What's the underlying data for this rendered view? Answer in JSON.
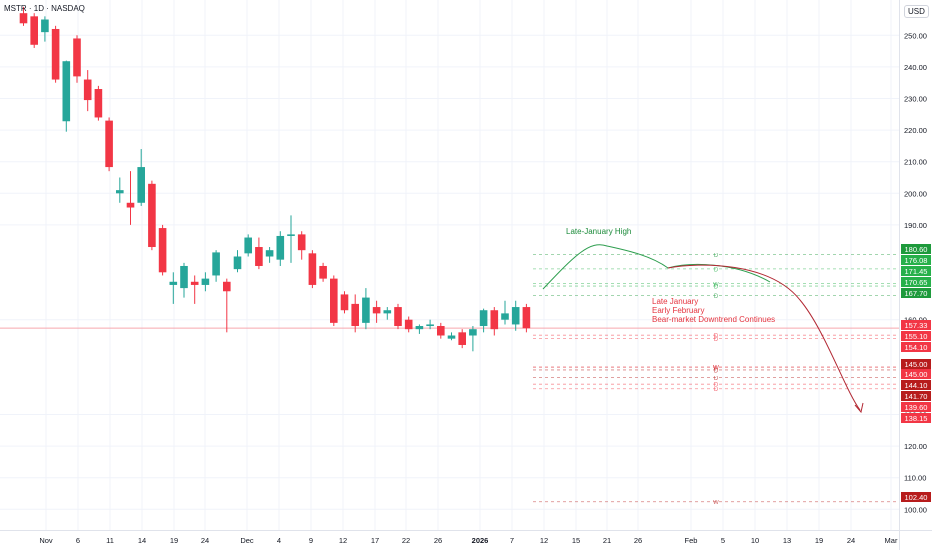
{
  "header": {
    "symbol": "MSTR · 1D · NASDAQ",
    "currency": "USD"
  },
  "colors": {
    "up": "#26a69a",
    "down": "#f23645",
    "grid": "#f0f3fa",
    "axis_text": "#131722",
    "green_text": "#1b8a3a",
    "red_text": "#e5343f",
    "projection_green": "#2e9e4f",
    "projection_red": "#b22833",
    "current_line": "#f7a6ae"
  },
  "chart_data": {
    "type": "candlestick",
    "x_tick_labels": [
      "Nov",
      "6",
      "11",
      "14",
      "19",
      "24",
      "Dec",
      "4",
      "9",
      "12",
      "17",
      "22",
      "26",
      "2026",
      "7",
      "12",
      "15",
      "21",
      "26",
      "Feb",
      "5",
      "10",
      "13",
      "19",
      "24",
      "Mar"
    ],
    "y_tick_labels": [
      "250.00",
      "240.00",
      "230.00",
      "220.00",
      "210.00",
      "200.00",
      "190.00",
      "160.00",
      "130.00",
      "120.00",
      "110.00",
      "100.00"
    ],
    "ylim": [
      97,
      254
    ],
    "candles": [
      {
        "o": 257.0,
        "h": 259.0,
        "l": 253.0,
        "c": 253.8
      },
      {
        "o": 256.0,
        "h": 257.0,
        "l": 246.0,
        "c": 247.0
      },
      {
        "o": 251.0,
        "h": 256.0,
        "l": 248.0,
        "c": 255.0
      },
      {
        "o": 252.0,
        "h": 253.0,
        "l": 235.0,
        "c": 236.0
      },
      {
        "o": 222.8,
        "h": 242.0,
        "l": 219.5,
        "c": 241.8
      },
      {
        "o": 249.0,
        "h": 250.0,
        "l": 235.0,
        "c": 237.0
      },
      {
        "o": 236.0,
        "h": 239.0,
        "l": 226.0,
        "c": 229.5
      },
      {
        "o": 233.0,
        "h": 234.0,
        "l": 223.0,
        "c": 224.0
      },
      {
        "o": 223.0,
        "h": 224.0,
        "l": 207.0,
        "c": 208.3
      },
      {
        "o": 200.0,
        "h": 205.0,
        "l": 197.0,
        "c": 201.0
      },
      {
        "o": 197.0,
        "h": 207.0,
        "l": 190.0,
        "c": 195.5
      },
      {
        "o": 197.0,
        "h": 214.0,
        "l": 196.0,
        "c": 208.3
      },
      {
        "o": 203.0,
        "h": 204.0,
        "l": 182.0,
        "c": 183.0
      },
      {
        "o": 189.0,
        "h": 190.0,
        "l": 174.0,
        "c": 175.0
      },
      {
        "o": 171.0,
        "h": 175.0,
        "l": 165.0,
        "c": 172.0
      },
      {
        "o": 170.0,
        "h": 178.0,
        "l": 167.0,
        "c": 177.0
      },
      {
        "o": 172.0,
        "h": 174.0,
        "l": 165.0,
        "c": 171.0
      },
      {
        "o": 171.0,
        "h": 175.0,
        "l": 169.0,
        "c": 173.0
      },
      {
        "o": 174.0,
        "h": 182.0,
        "l": 172.0,
        "c": 181.3
      },
      {
        "o": 172.0,
        "h": 173.0,
        "l": 156.0,
        "c": 169.0
      },
      {
        "o": 176.0,
        "h": 182.0,
        "l": 175.0,
        "c": 180.0
      },
      {
        "o": 181.0,
        "h": 187.0,
        "l": 180.0,
        "c": 186.0
      },
      {
        "o": 183.0,
        "h": 186.0,
        "l": 176.0,
        "c": 177.0
      },
      {
        "o": 180.0,
        "h": 183.0,
        "l": 178.0,
        "c": 182.0
      },
      {
        "o": 179.0,
        "h": 188.0,
        "l": 177.0,
        "c": 186.5
      },
      {
        "o": 186.5,
        "h": 193.0,
        "l": 178.0,
        "c": 187.0
      },
      {
        "o": 187.0,
        "h": 188.0,
        "l": 179.0,
        "c": 182.0
      },
      {
        "o": 181.0,
        "h": 182.0,
        "l": 170.0,
        "c": 171.0
      },
      {
        "o": 177.0,
        "h": 178.0,
        "l": 172.0,
        "c": 173.0
      },
      {
        "o": 173.0,
        "h": 174.0,
        "l": 158.0,
        "c": 159.0
      },
      {
        "o": 168.0,
        "h": 169.0,
        "l": 162.0,
        "c": 163.0
      },
      {
        "o": 165.0,
        "h": 168.0,
        "l": 156.0,
        "c": 158.0
      },
      {
        "o": 159.0,
        "h": 170.0,
        "l": 157.0,
        "c": 167.0
      },
      {
        "o": 164.0,
        "h": 166.0,
        "l": 159.0,
        "c": 162.0
      },
      {
        "o": 162.0,
        "h": 164.0,
        "l": 160.0,
        "c": 163.0
      },
      {
        "o": 164.0,
        "h": 165.0,
        "l": 157.0,
        "c": 158.0
      },
      {
        "o": 160.0,
        "h": 161.0,
        "l": 156.0,
        "c": 157.0
      },
      {
        "o": 157.0,
        "h": 158.5,
        "l": 155.5,
        "c": 158.0
      },
      {
        "o": 158.0,
        "h": 160.0,
        "l": 157.0,
        "c": 158.5
      },
      {
        "o": 158.0,
        "h": 159.0,
        "l": 154.0,
        "c": 155.0
      },
      {
        "o": 154.0,
        "h": 156.0,
        "l": 153.5,
        "c": 155.0
      },
      {
        "o": 156.0,
        "h": 157.0,
        "l": 151.0,
        "c": 152.0
      },
      {
        "o": 155.0,
        "h": 158.0,
        "l": 150.0,
        "c": 157.0
      },
      {
        "o": 158.0,
        "h": 163.5,
        "l": 156.0,
        "c": 163.0
      },
      {
        "o": 163.0,
        "h": 164.0,
        "l": 155.0,
        "c": 157.0
      },
      {
        "o": 160.0,
        "h": 166.0,
        "l": 158.5,
        "c": 162.0
      },
      {
        "o": 158.5,
        "h": 166.0,
        "l": 156.5,
        "c": 164.0
      },
      {
        "o": 164.0,
        "h": 165.0,
        "l": 156.0,
        "c": 157.3
      }
    ],
    "current_price": 157.33,
    "levels": [
      {
        "value": 180.6,
        "label": "180.60",
        "color": "#1e9a3c",
        "tag": "D"
      },
      {
        "value": 176.08,
        "label": "176.08",
        "color": "#26b04a",
        "tag": "D"
      },
      {
        "value": 171.45,
        "label": "171.45",
        "color": "#26b04a",
        "tag": "W"
      },
      {
        "value": 170.65,
        "label": "170.65",
        "color": "#26b04a",
        "tag": "D"
      },
      {
        "value": 167.7,
        "label": "167.70",
        "color": "#1e9a3c",
        "tag": "D"
      },
      {
        "value": 155.1,
        "label": "155.10",
        "color": "#f23645",
        "tag": "D"
      },
      {
        "value": 154.1,
        "label": "154.10",
        "color": "#f23645",
        "tag": "D"
      },
      {
        "value": 145.0,
        "label": "145.00",
        "color": "#b71c1c",
        "tag": "W"
      },
      {
        "value": 145.0,
        "label": "145.00",
        "color": "#f23645",
        "tag": "W"
      },
      {
        "value": 144.1,
        "label": "144.10",
        "color": "#b71c1c",
        "tag": "D"
      },
      {
        "value": 141.7,
        "label": "141.70",
        "color": "#b71c1c",
        "tag": "D"
      },
      {
        "value": 139.6,
        "label": "139.60",
        "color": "#f23645",
        "tag": "D"
      },
      {
        "value": 138.15,
        "label": "138.15",
        "color": "#f23645",
        "tag": "D"
      },
      {
        "value": 102.4,
        "label": "102.40",
        "color": "#b71c1c",
        "tag": "W"
      }
    ],
    "current_label": "157.33",
    "annotations": {
      "high": "Late-January High",
      "bear_lines": [
        "Late January",
        "Early February",
        "Bear-market Downtrend Continues"
      ]
    }
  }
}
